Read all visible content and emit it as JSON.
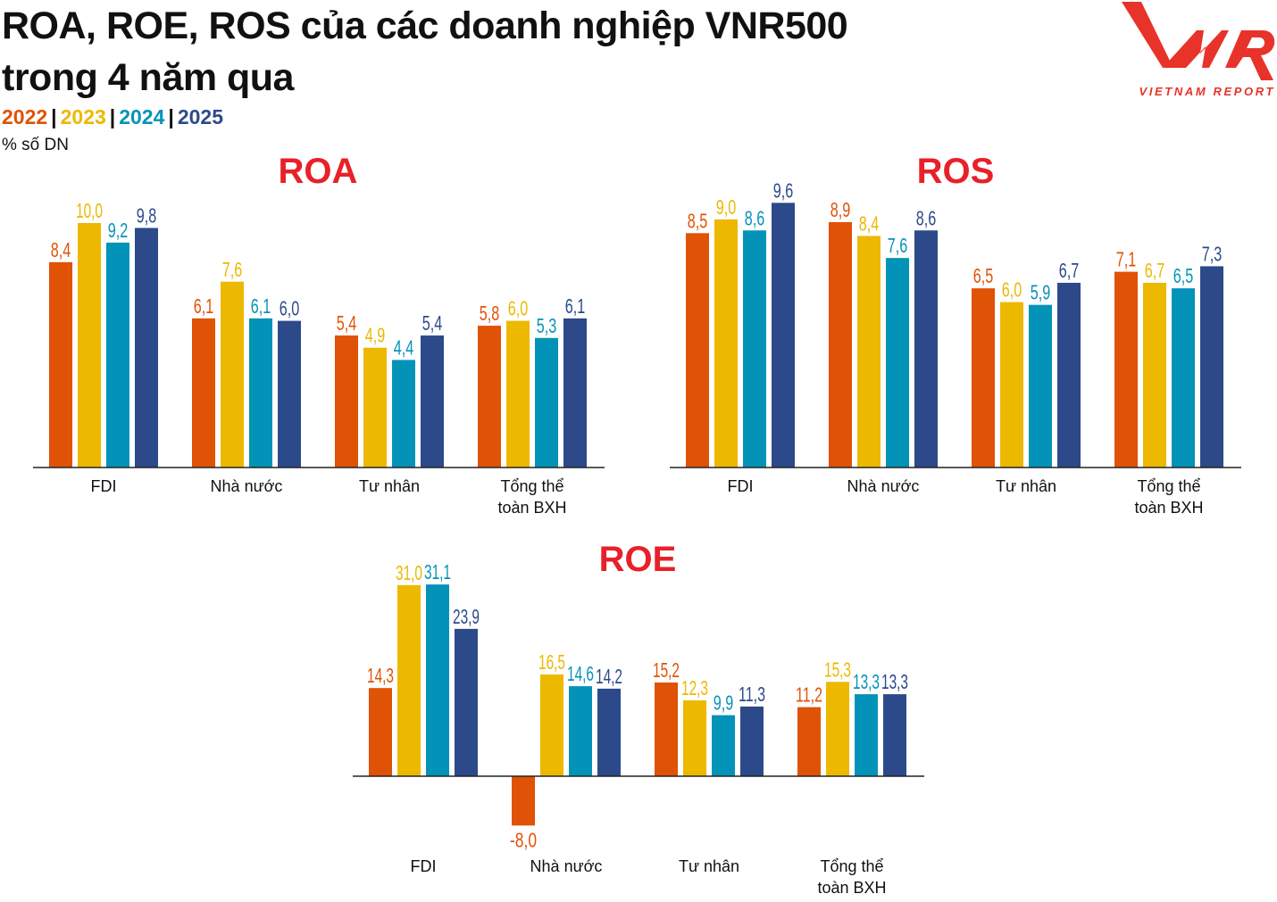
{
  "header": {
    "title_line1": "ROA, ROE, ROS của các doanh nghiệp VNR500",
    "title_line2": "trong 4 năm qua",
    "unit": "% số DN"
  },
  "logo": {
    "text": "VNR",
    "subtext": "VIETNAM REPORT",
    "color": "#E8332A"
  },
  "legend": [
    {
      "label": "2022",
      "color": "#E05206"
    },
    {
      "label": "2023",
      "color": "#EDB800"
    },
    {
      "label": "2024",
      "color": "#0493B8"
    },
    {
      "label": "2025",
      "color": "#2C4A8A"
    }
  ],
  "chart_data": [
    {
      "type": "bar",
      "title": "ROA",
      "categories": [
        "FDI",
        "Nhà nước",
        "Tư nhân",
        "Tổng thể toàn BXH"
      ],
      "series": [
        {
          "name": "2022",
          "values": [
            8.4,
            6.1,
            5.4,
            5.8
          ]
        },
        {
          "name": "2023",
          "values": [
            10.0,
            7.6,
            4.9,
            6.0
          ]
        },
        {
          "name": "2024",
          "values": [
            9.2,
            6.1,
            4.4,
            5.3
          ]
        },
        {
          "name": "2025",
          "values": [
            9.8,
            6.0,
            5.4,
            6.1
          ]
        }
      ],
      "grid": false
    },
    {
      "type": "bar",
      "title": "ROS",
      "categories": [
        "FDI",
        "Nhà nước",
        "Tư nhân",
        "Tổng thể toàn BXH"
      ],
      "series": [
        {
          "name": "2022",
          "values": [
            8.5,
            8.9,
            6.5,
            7.1
          ]
        },
        {
          "name": "2023",
          "values": [
            9.0,
            8.4,
            6.0,
            6.7
          ]
        },
        {
          "name": "2024",
          "values": [
            8.6,
            7.6,
            5.9,
            6.5
          ]
        },
        {
          "name": "2025",
          "values": [
            9.6,
            8.6,
            6.7,
            7.3
          ]
        }
      ],
      "grid": false
    },
    {
      "type": "bar",
      "title": "ROE",
      "categories": [
        "FDI",
        "Nhà nước",
        "Tư nhân",
        "Tổng thể toàn BXH"
      ],
      "series": [
        {
          "name": "2022",
          "values": [
            14.3,
            -8.0,
            15.2,
            11.2
          ]
        },
        {
          "name": "2023",
          "values": [
            31.0,
            16.5,
            12.3,
            15.3
          ]
        },
        {
          "name": "2024",
          "values": [
            31.1,
            14.6,
            9.9,
            13.3
          ]
        },
        {
          "name": "2025",
          "values": [
            23.9,
            14.2,
            11.3,
            13.3
          ]
        }
      ],
      "grid": false
    }
  ],
  "title_color": "#E8202A"
}
